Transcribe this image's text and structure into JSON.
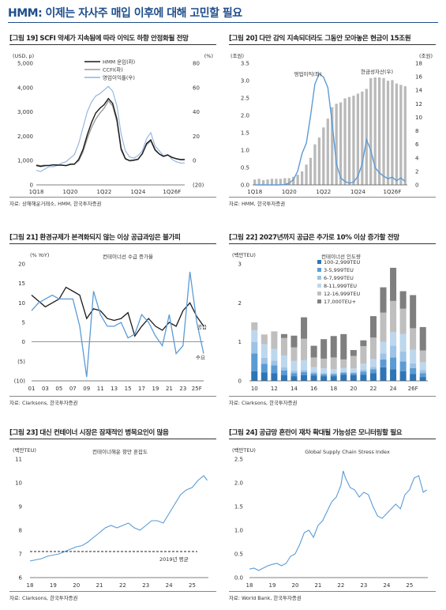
{
  "page_title": "HMM: 이제는 자사주 매입 이후에 대해 고민할 필요",
  "panels": [
    {
      "title": "[그림 19] SCFI 약세가 지속됨에 따라 이익도 하향 안정화될 전망",
      "source": "자료: 상해해운거래소, HMM, 한국투자증권",
      "chart_data": {
        "type": "line",
        "left_unit": "(USD, p)",
        "right_unit": "(%)",
        "left_ticks": [
          "0",
          "1,000",
          "2,000",
          "3,000",
          "4,000",
          "5,000"
        ],
        "right_ticks": [
          "(20)",
          "0",
          "20",
          "40",
          "60",
          "80"
        ],
        "ylim": [
          0,
          5000
        ],
        "ylim_right": [
          -20,
          80
        ],
        "x_tick_labels": [
          "1Q18",
          "1Q20",
          "1Q22",
          "1Q24",
          "1Q26F"
        ],
        "x_tick_index": [
          0,
          8,
          16,
          24,
          32
        ],
        "series": [
          {
            "name": "HMM 운임(좌)",
            "color": "#1a1a1a",
            "axis": "left",
            "values": [
              800,
              760,
              790,
              800,
              820,
              810,
              810,
              790,
              840,
              850,
              1050,
              1450,
              2050,
              2550,
              2950,
              3150,
              3300,
              3550,
              3350,
              2700,
              1500,
              1080,
              1000,
              1020,
              1060,
              1280,
              1700,
              1850,
              1450,
              1270,
              1170,
              1230,
              1130,
              1070,
              1040,
              1040
            ]
          },
          {
            "name": "CCFI(좌)",
            "color": "#9a9a9a",
            "axis": "left",
            "values": [
              820,
              790,
              810,
              800,
              830,
              830,
              820,
              800,
              860,
              870,
              990,
              1350,
              1900,
              2350,
              2700,
              2950,
              3150,
              3450,
              3250,
              2600,
              1420,
              1060,
              980,
              1000,
              1040,
              1300,
              1650,
              1800,
              1420,
              1270,
              1190,
              1220,
              1140,
              1080,
              1050,
              1050
            ]
          },
          {
            "name": "영업이익률(우)",
            "color": "#8fb2df",
            "axis": "right",
            "values": [
              -8,
              -9,
              -7,
              -5,
              -5,
              -4,
              -2,
              -1,
              2,
              5,
              14,
              27,
              40,
              48,
              53,
              55,
              58,
              61,
              57,
              45,
              22,
              8,
              3,
              2,
              4,
              8,
              18,
              23,
              12,
              8,
              4,
              5,
              1,
              -1,
              -2,
              -2
            ]
          }
        ]
      }
    },
    {
      "title": "[그림 20] 다만 감익 지속되더라도 그동안 모아놓은 현금이 15조원",
      "source": "자료: HMM, 한국투자증권",
      "chart_data": {
        "type": "bar+line",
        "left_unit": "(조원)",
        "right_unit": "(조원)",
        "left_ticks": [
          "0.0",
          "0.5",
          "1.0",
          "1.5",
          "2.0",
          "2.5",
          "3.0",
          "3.5"
        ],
        "right_ticks": [
          "0",
          "2",
          "4",
          "6",
          "8",
          "10",
          "12",
          "14",
          "16",
          "18"
        ],
        "ylim": [
          0,
          3.5
        ],
        "ylim_right": [
          0,
          18
        ],
        "x_tick_labels": [
          "1Q18",
          "1Q20",
          "1Q22",
          "1Q24",
          "1Q26F"
        ],
        "x_tick_index": [
          0,
          8,
          16,
          24,
          32
        ],
        "series": [
          {
            "name": "현금성자산(우)",
            "color": "#b9b9b9",
            "axis": "right",
            "kind": "bar",
            "values": [
              0.8,
              0.9,
              0.7,
              0.8,
              0.9,
              0.9,
              0.9,
              1.0,
              1.0,
              1.2,
              1.5,
              2.0,
              3.0,
              4.0,
              6.0,
              7.0,
              8.5,
              9.8,
              11.5,
              12.0,
              12.2,
              12.8,
              13.0,
              13.2,
              13.5,
              13.8,
              14.2,
              15.8,
              15.9,
              15.9,
              15.8,
              15.4,
              15.5,
              15.0,
              14.8,
              14.6
            ]
          },
          {
            "name": "영업이익(좌)",
            "color": "#5b9bd5",
            "axis": "left",
            "kind": "line",
            "values": [
              0.0,
              0.0,
              0.0,
              -0.05,
              -0.05,
              -0.05,
              -0.02,
              0.01,
              0.05,
              0.15,
              0.4,
              0.9,
              1.2,
              2.0,
              2.9,
              3.2,
              3.1,
              2.8,
              1.8,
              0.6,
              0.2,
              0.1,
              0.05,
              0.08,
              0.25,
              0.6,
              1.3,
              1.0,
              0.5,
              0.35,
              0.25,
              0.18,
              0.22,
              0.12,
              0.2,
              0.1
            ]
          }
        ]
      }
    },
    {
      "title": "[그림 21] 환경규제가 본격화되지 않는 이상 공급과잉은 불가피",
      "source": "자료: Clarksons, 한국투자증권",
      "chart_data": {
        "type": "line",
        "subtitle": "컨테이너선 수급 증가율",
        "left_unit": "(% YoY)",
        "left_ticks": [
          "(10)",
          "(5)",
          "0",
          "5",
          "10",
          "15",
          "20"
        ],
        "ylim": [
          -10,
          20
        ],
        "x": [
          2001,
          2002,
          2003,
          2004,
          2005,
          2006,
          2007,
          2008,
          2009,
          2010,
          2011,
          2012,
          2013,
          2014,
          2015,
          2016,
          2017,
          2018,
          2019,
          2020,
          2021,
          2022,
          2023,
          2024,
          2025,
          2026
        ],
        "x_tick_labels": [
          "01",
          "03",
          "05",
          "07",
          "09",
          "11",
          "13",
          "15",
          "17",
          "19",
          "21",
          "23",
          "25F"
        ],
        "series": [
          {
            "name": "공급",
            "color": "#1a1a1a",
            "values": [
              12,
              10.5,
              9,
              10,
              11,
              14,
              13,
              12,
              6,
              8.5,
              8,
              6,
              5.5,
              6,
              7.5,
              1.5,
              4,
              6,
              4,
              3,
              5,
              4,
              8,
              10,
              6.5,
              4
            ]
          },
          {
            "name": "수요",
            "color": "#5b9bd5",
            "values": [
              8,
              10,
              11,
              12,
              11,
              11,
              11,
              4,
              -9,
              13,
              7,
              4,
              4,
              5,
              1,
              2,
              7,
              5,
              1.5,
              -1,
              7,
              -3,
              -1,
              18,
              5,
              -3
            ]
          }
        ]
      }
    },
    {
      "title": "[그림 22] 2027년까지 공급은 추가로 10% 이상 증가할 전망",
      "source": "자료: Clarksons, 한국투자증권",
      "chart_data": {
        "type": "stacked-bar",
        "subtitle": "컨테이너선 인도량",
        "left_unit": "(백만TEU)",
        "left_ticks": [
          "0",
          "1",
          "2",
          "3"
        ],
        "ylim": [
          0,
          3
        ],
        "categories": [
          "2010",
          "2011",
          "2012",
          "2013",
          "2014",
          "2015",
          "2016",
          "2017",
          "2018",
          "2019",
          "2020",
          "2021",
          "2022",
          "2023",
          "2024",
          "2025",
          "2026",
          "2027"
        ],
        "x_tick_labels": [
          "10",
          "12",
          "14",
          "16",
          "18",
          "20",
          "22",
          "24",
          "26F"
        ],
        "series": [
          {
            "name": "100-2,999TEU",
            "color": "#2e75b6",
            "values": [
              0.25,
              0.22,
              0.2,
              0.15,
              0.12,
              0.15,
              0.14,
              0.12,
              0.12,
              0.16,
              0.15,
              0.16,
              0.2,
              0.35,
              0.3,
              0.25,
              0.18,
              0.1
            ]
          },
          {
            "name": "3-5,999TEU",
            "color": "#5b9bd5",
            "values": [
              0.45,
              0.22,
              0.2,
              0.12,
              0.08,
              0.08,
              0.05,
              0.05,
              0.05,
              0.05,
              0.05,
              0.08,
              0.1,
              0.2,
              0.3,
              0.25,
              0.15,
              0.1
            ]
          },
          {
            "name": "6-7,999TEU",
            "color": "#9dc3e6",
            "values": [
              0.3,
              0.15,
              0.12,
              0.08,
              0.06,
              0.05,
              0.04,
              0.03,
              0.03,
              0.02,
              0.02,
              0.05,
              0.06,
              0.15,
              0.3,
              0.25,
              0.12,
              0.08
            ]
          },
          {
            "name": "8-11,999TEU",
            "color": "#bdd7ee",
            "values": [
              0.3,
              0.35,
              0.3,
              0.3,
              0.25,
              0.25,
              0.12,
              0.12,
              0.1,
              0.1,
              0.1,
              0.15,
              0.2,
              0.3,
              0.35,
              0.45,
              0.35,
              0.2
            ]
          },
          {
            "name": "12-16,999TEU",
            "color": "#bfbfbf",
            "values": [
              0.2,
              0.25,
              0.45,
              0.45,
              0.35,
              0.55,
              0.25,
              0.25,
              0.3,
              0.22,
              0.32,
              0.45,
              0.55,
              0.75,
              0.8,
              0.65,
              0.55,
              0.3
            ]
          },
          {
            "name": "17,000TEU+",
            "color": "#7f7f7f",
            "values": [
              0.0,
              0.0,
              0.0,
              0.1,
              0.3,
              0.55,
              0.3,
              0.5,
              0.55,
              0.65,
              0.15,
              0.15,
              0.55,
              0.65,
              0.85,
              0.45,
              0.85,
              0.6
            ]
          }
        ]
      }
    },
    {
      "title": "[그림 23] 대신 컨테이너 시장은 잠재적인 병목요인이 많음",
      "source": "자료: Clarksons, 한국투자증권",
      "chart_data": {
        "type": "line",
        "subtitle": "컨테이너해운 항만 혼잡도",
        "left_unit": "(백만TEU)",
        "left_ticks": [
          "6",
          "7",
          "8",
          "9",
          "10",
          "11"
        ],
        "ylim": [
          6,
          11
        ],
        "x_tick_labels": [
          "18",
          "19",
          "20",
          "21",
          "22",
          "23",
          "24",
          "25"
        ],
        "x_range": [
          2018.0,
          2025.7
        ],
        "annotation": {
          "label": "2019년 평균",
          "value": 7.1
        },
        "series": [
          {
            "name": "컨테이너해운 항만 혼잡도",
            "color": "#5b9bd5",
            "x": [
              2018.0,
              2018.25,
              2018.5,
              2018.75,
              2019.0,
              2019.25,
              2019.5,
              2019.75,
              2020.0,
              2020.25,
              2020.5,
              2020.75,
              2021.0,
              2021.25,
              2021.5,
              2021.75,
              2022.0,
              2022.25,
              2022.5,
              2022.75,
              2023.0,
              2023.25,
              2023.5,
              2023.75,
              2024.0,
              2024.25,
              2024.5,
              2024.75,
              2025.0,
              2025.25,
              2025.5,
              2025.65
            ],
            "values": [
              6.7,
              6.75,
              6.8,
              6.9,
              6.95,
              7.0,
              7.1,
              7.2,
              7.3,
              7.35,
              7.5,
              7.7,
              7.9,
              8.1,
              8.2,
              8.1,
              8.2,
              8.3,
              8.1,
              8.0,
              8.2,
              8.4,
              8.4,
              8.3,
              8.7,
              9.1,
              9.5,
              9.7,
              9.8,
              10.1,
              10.3,
              10.1
            ]
          }
        ]
      }
    },
    {
      "title": "[그림 24] 공급망 혼란이 재차 확대될 가능성은 모니터링할 필요",
      "source": "자료: World Bank, 한국투자증권",
      "chart_data": {
        "type": "line",
        "subtitle": "Global Supply Chain Stress Index",
        "left_unit": "(백만TEU)",
        "left_ticks": [
          "0.0",
          "0.5",
          "1.0",
          "1.5",
          "2.0",
          "2.5"
        ],
        "ylim": [
          0,
          2.5
        ],
        "x_tick_labels": [
          "18",
          "19",
          "20",
          "21",
          "22",
          "23",
          "24",
          "25"
        ],
        "x_range": [
          2018.0,
          2025.8
        ],
        "series": [
          {
            "name": "Global Supply Chain Stress Index",
            "color": "#5b9bd5",
            "x": [
              2018.0,
              2018.2,
              2018.4,
              2018.6,
              2018.8,
              2019.0,
              2019.2,
              2019.4,
              2019.6,
              2019.8,
              2020.0,
              2020.2,
              2020.4,
              2020.6,
              2020.8,
              2021.0,
              2021.2,
              2021.4,
              2021.6,
              2021.8,
              2022.0,
              2022.1,
              2022.2,
              2022.4,
              2022.6,
              2022.8,
              2023.0,
              2023.2,
              2023.4,
              2023.6,
              2023.8,
              2024.0,
              2024.2,
              2024.4,
              2024.6,
              2024.8,
              2025.0,
              2025.2,
              2025.4,
              2025.6,
              2025.75
            ],
            "values": [
              0.18,
              0.2,
              0.15,
              0.2,
              0.25,
              0.28,
              0.3,
              0.25,
              0.3,
              0.45,
              0.5,
              0.7,
              0.95,
              1.0,
              0.85,
              1.1,
              1.2,
              1.4,
              1.6,
              1.7,
              1.95,
              2.25,
              2.1,
              1.9,
              1.85,
              1.7,
              1.8,
              1.75,
              1.5,
              1.3,
              1.25,
              1.35,
              1.45,
              1.55,
              1.45,
              1.75,
              1.85,
              2.1,
              2.15,
              1.8,
              1.85
            ]
          }
        ]
      }
    }
  ]
}
